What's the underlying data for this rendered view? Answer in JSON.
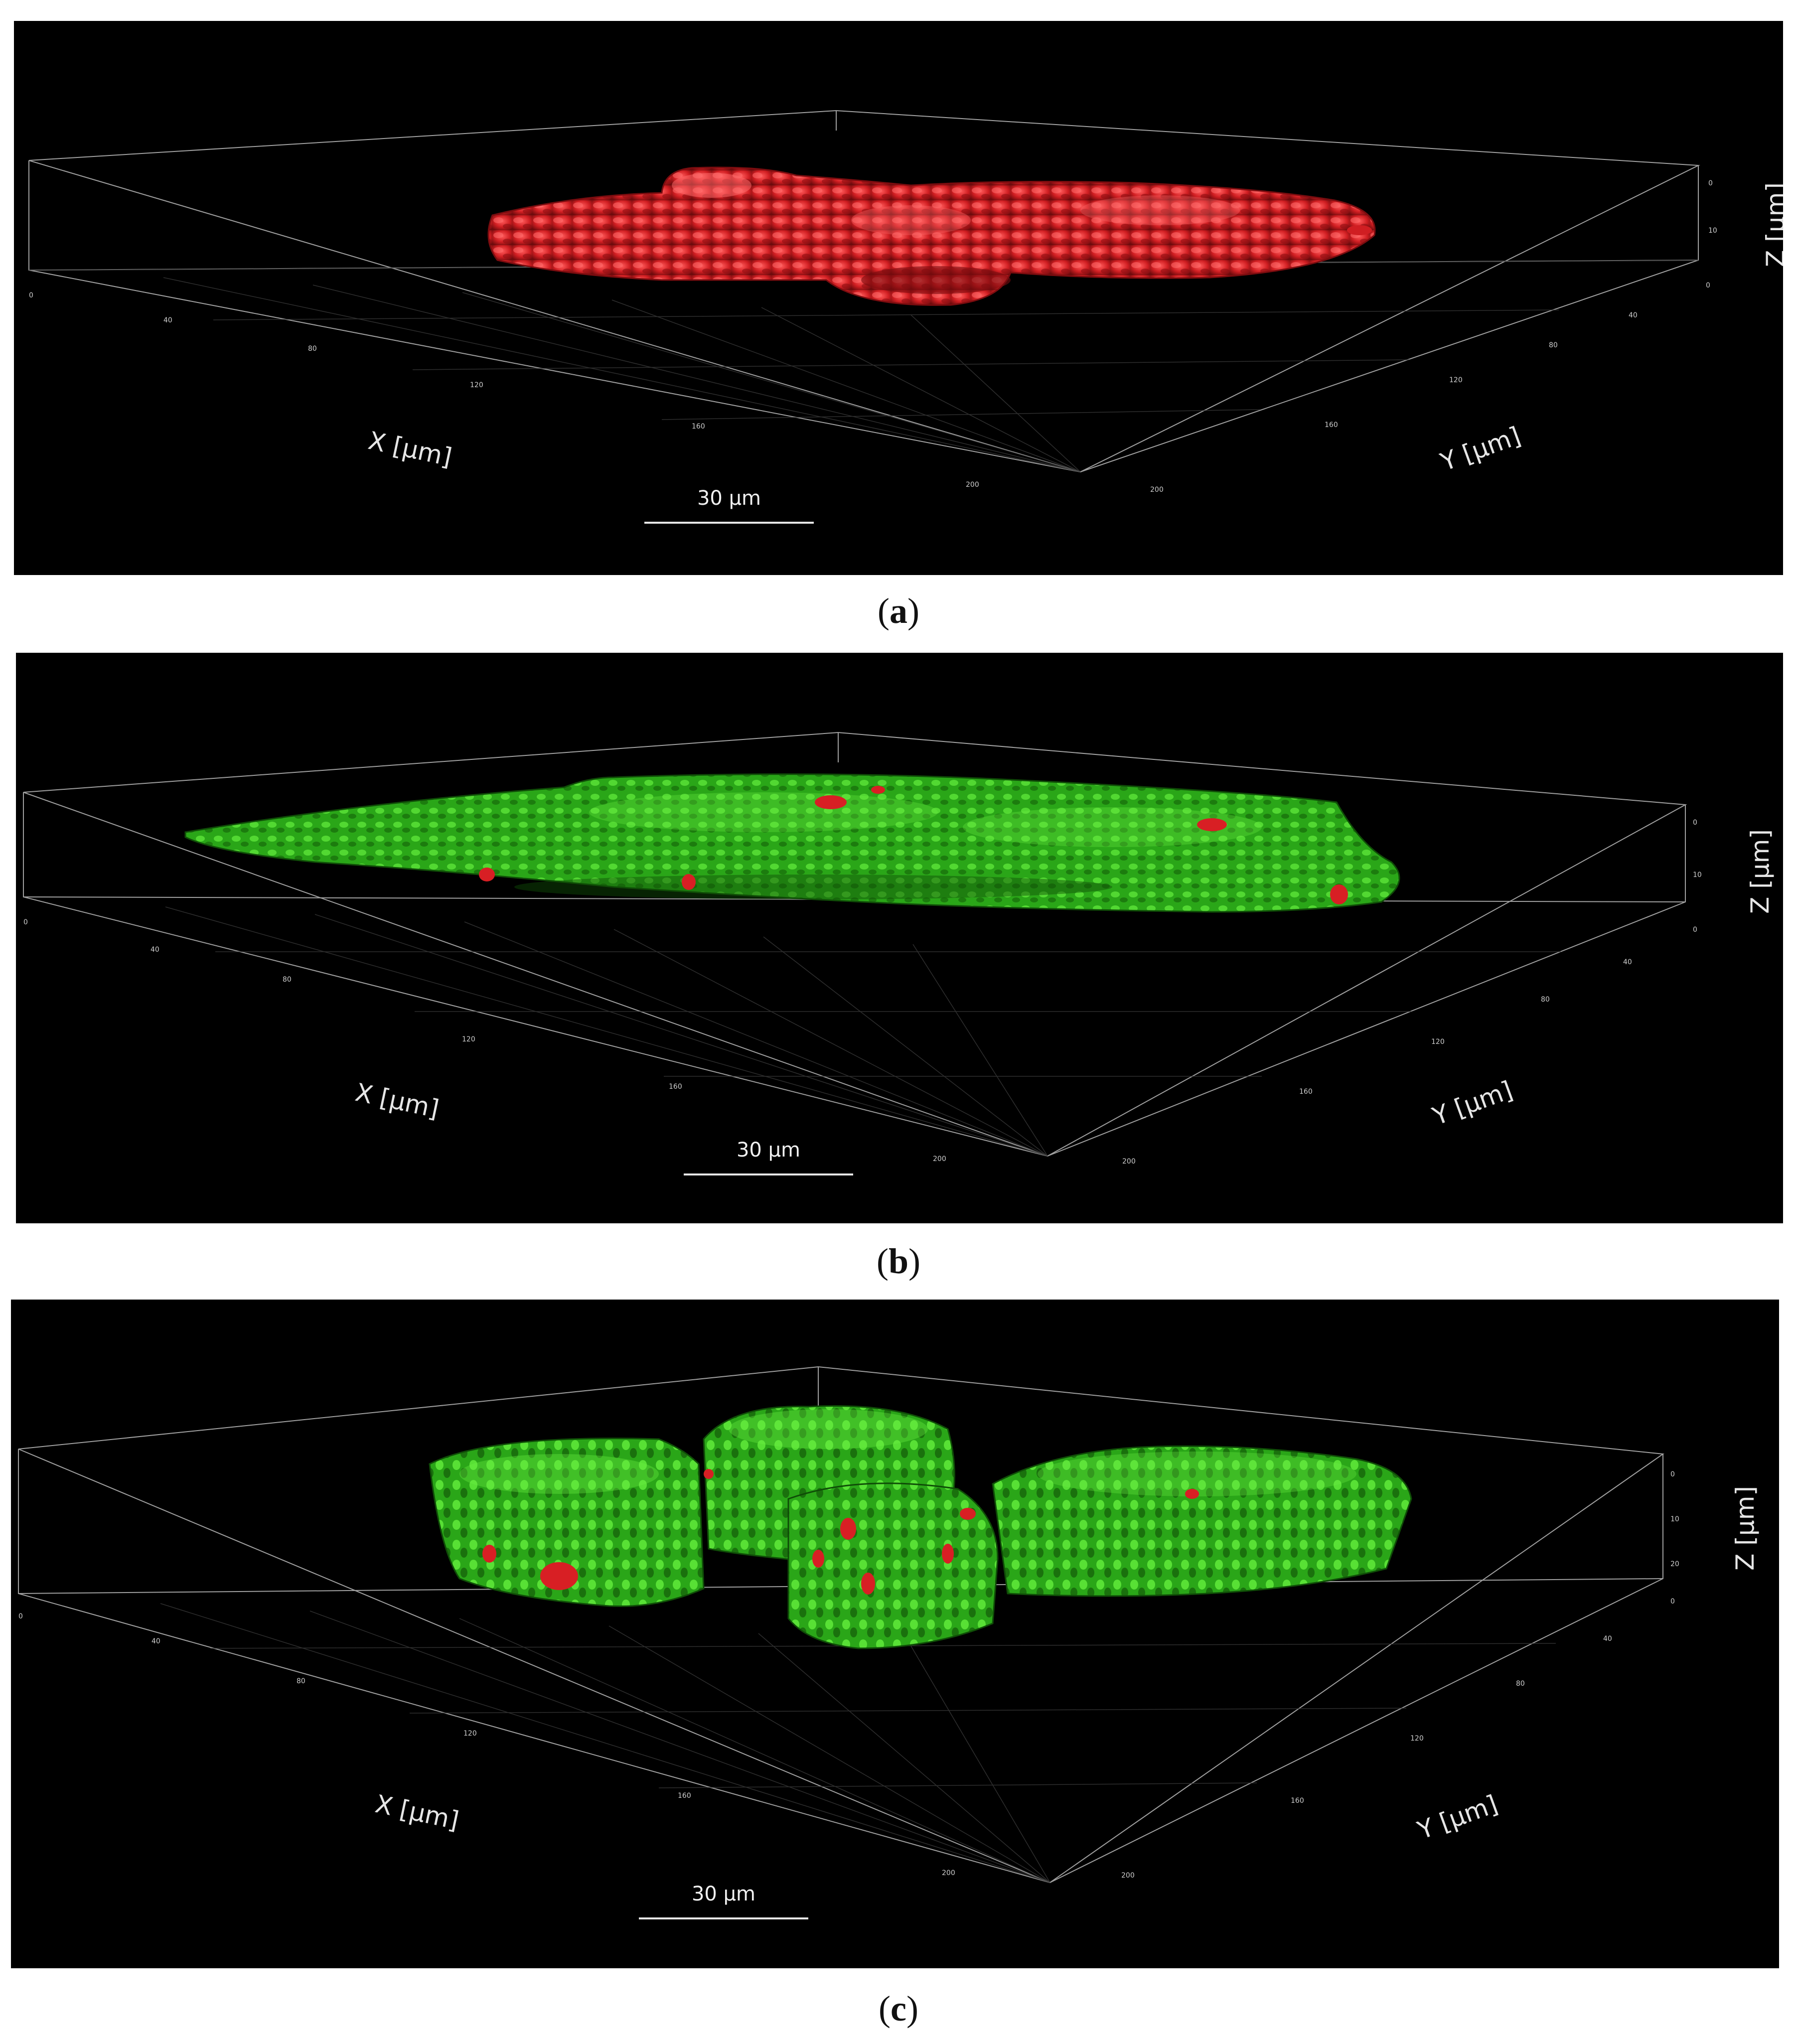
{
  "panels": [
    {
      "caption_letter": "a",
      "x_label": "X [µm]",
      "y_label": "Y [µm]",
      "z_label": "Z [µm]",
      "scale_bar": "30 µm",
      "x_ticks": [
        "0",
        "40",
        "80",
        "120",
        "160",
        "200"
      ],
      "y_ticks": [
        "0",
        "40",
        "80",
        "120",
        "160",
        "200"
      ],
      "z_ticks": [
        "0",
        "10"
      ],
      "surface_color": "#d81f24"
    },
    {
      "caption_letter": "b",
      "x_label": "X [µm]",
      "y_label": "Y [µm]",
      "z_label": "Z [µm]",
      "scale_bar": "30 µm",
      "x_ticks": [
        "0",
        "40",
        "80",
        "120",
        "160",
        "200"
      ],
      "y_ticks": [
        "0",
        "40",
        "80",
        "120",
        "160",
        "200"
      ],
      "z_ticks": [
        "0",
        "10"
      ],
      "surface_color": "#2fc21c",
      "spot_color": "#d81f24"
    },
    {
      "caption_letter": "c",
      "x_label": "X [µm]",
      "y_label": "Y [µm]",
      "z_label": "Z [µm]",
      "scale_bar": "30 µm",
      "x_ticks": [
        "0",
        "40",
        "80",
        "120",
        "160",
        "200"
      ],
      "y_ticks": [
        "0",
        "40",
        "80",
        "120",
        "160",
        "200"
      ],
      "z_ticks": [
        "0",
        "10",
        "20"
      ],
      "surface_color": "#2fc21c",
      "spot_color": "#d81f24"
    }
  ]
}
